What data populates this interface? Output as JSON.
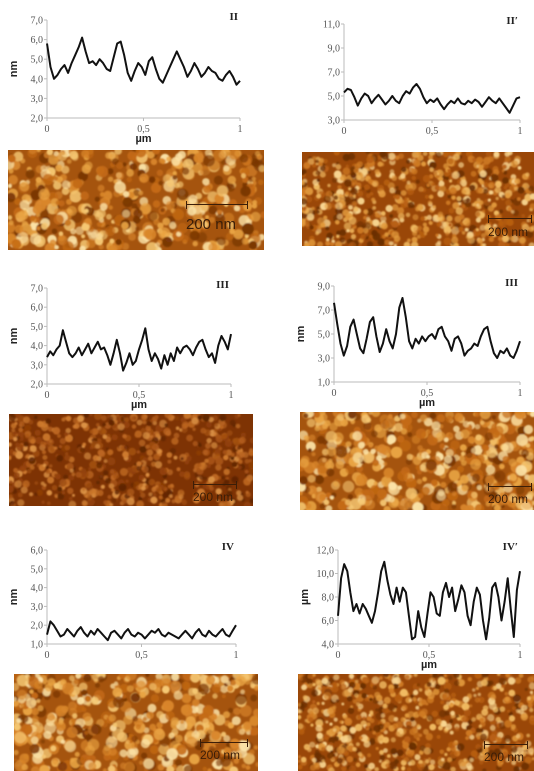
{
  "panels": [
    {
      "id": "II",
      "label": "II",
      "y_unit": "nm",
      "x_unit": "µm",
      "y_ticks": [
        "7,0",
        "6,0",
        "5,0",
        "4,0",
        "3,0",
        "2,0"
      ],
      "x_ticks": [
        "0",
        "0,5",
        "1"
      ],
      "ylim": [
        2.0,
        7.0
      ],
      "profile": [
        5.8,
        4.6,
        4.0,
        4.2,
        4.5,
        4.7,
        4.3,
        4.8,
        5.2,
        5.6,
        6.1,
        5.4,
        4.8,
        4.9,
        4.7,
        5.0,
        4.8,
        4.5,
        4.4,
        5.1,
        5.8,
        5.9,
        5.2,
        4.3,
        3.9,
        4.4,
        4.8,
        4.6,
        4.2,
        4.9,
        5.1,
        4.5,
        4.0,
        3.8,
        4.2,
        4.6,
        5.0,
        5.4,
        5.0,
        4.6,
        4.1,
        4.4,
        4.8,
        4.5,
        4.1,
        4.3,
        4.6,
        4.4,
        4.3,
        4.0,
        3.9,
        4.2,
        4.4,
        4.1,
        3.7,
        3.9
      ],
      "afm_scale": "200 nm",
      "afm_tone": "light"
    },
    {
      "id": "IIp",
      "label": "II′",
      "y_unit": "",
      "x_unit": "",
      "y_ticks": [
        "11,0",
        "9,0",
        "7,0",
        "5,0",
        "3,0"
      ],
      "x_ticks": [
        "0",
        "0,5",
        "1"
      ],
      "ylim": [
        3.0,
        11.0
      ],
      "profile": [
        5.3,
        5.6,
        5.5,
        4.9,
        4.2,
        4.8,
        5.2,
        5.0,
        4.4,
        4.8,
        5.1,
        4.7,
        4.3,
        4.6,
        5.0,
        4.6,
        4.4,
        5.0,
        5.4,
        5.2,
        5.7,
        6.0,
        5.6,
        4.9,
        4.4,
        4.7,
        4.5,
        4.8,
        4.3,
        3.9,
        4.3,
        4.6,
        4.4,
        4.8,
        4.4,
        4.3,
        4.6,
        4.4,
        4.7,
        4.5,
        4.1,
        4.5,
        4.9,
        4.6,
        4.4,
        4.8,
        4.4,
        4.0,
        3.6,
        4.2,
        4.8,
        4.9
      ],
      "afm_scale": "200 nm",
      "afm_tone": "mid"
    },
    {
      "id": "III",
      "label": "III",
      "y_unit": "nm",
      "x_unit": "µm",
      "y_ticks": [
        "7,0",
        "6,0",
        "5,0",
        "4,0",
        "3,0",
        "2,0"
      ],
      "x_ticks": [
        "0",
        "0,5",
        "1"
      ],
      "ylim": [
        2.0,
        7.0
      ],
      "profile": [
        3.4,
        3.7,
        3.5,
        3.8,
        4.0,
        4.8,
        4.2,
        3.6,
        3.4,
        3.6,
        3.9,
        3.5,
        3.8,
        4.1,
        3.6,
        3.9,
        4.2,
        3.8,
        3.9,
        3.5,
        3.0,
        3.6,
        4.3,
        3.6,
        2.7,
        3.1,
        3.6,
        3.0,
        3.2,
        3.8,
        4.3,
        4.9,
        3.8,
        3.2,
        3.6,
        3.3,
        2.8,
        3.5,
        3.0,
        3.6,
        3.2,
        3.9,
        3.6,
        3.9,
        4.0,
        3.8,
        3.5,
        3.9,
        4.2,
        4.3,
        3.8,
        3.4,
        3.6,
        3.1,
        4.0,
        4.5,
        4.2,
        3.8,
        4.6
      ],
      "afm_scale": "200 nm",
      "afm_tone": "dark"
    },
    {
      "id": "IIIp",
      "label": "III",
      "y_unit": "nm",
      "x_unit": "µm",
      "y_ticks": [
        "9,0",
        "7,0",
        "5,0",
        "3,0",
        "1,0"
      ],
      "x_ticks": [
        "0",
        "0,5",
        "1"
      ],
      "ylim": [
        1.0,
        9.0
      ],
      "profile": [
        7.6,
        5.8,
        4.2,
        3.2,
        4.0,
        5.6,
        6.2,
        5.0,
        3.8,
        3.4,
        4.6,
        6.0,
        6.4,
        4.8,
        3.5,
        4.2,
        5.4,
        4.4,
        3.8,
        5.0,
        7.2,
        8.0,
        6.4,
        4.4,
        3.8,
        4.6,
        4.2,
        4.8,
        4.4,
        4.8,
        5.0,
        4.6,
        5.4,
        5.6,
        4.8,
        4.4,
        3.6,
        4.6,
        4.8,
        4.2,
        3.2,
        3.6,
        3.8,
        4.2,
        4.0,
        4.8,
        5.4,
        5.6,
        4.4,
        3.4,
        3.0,
        3.6,
        3.4,
        3.8,
        3.2,
        3.0,
        3.6,
        4.4
      ],
      "afm_scale": "200 nm",
      "afm_tone": "light"
    },
    {
      "id": "IV",
      "label": "IV",
      "y_unit": "nm",
      "x_unit": "",
      "y_ticks": [
        "6,0",
        "5,0",
        "4,0",
        "3,0",
        "2,0",
        "1,0"
      ],
      "x_ticks": [
        "0",
        "0,5",
        "1"
      ],
      "ylim": [
        1.0,
        6.0
      ],
      "profile": [
        1.5,
        2.2,
        2.0,
        1.7,
        1.4,
        1.5,
        1.8,
        1.6,
        1.4,
        1.7,
        1.9,
        1.6,
        1.4,
        1.7,
        1.5,
        1.8,
        1.6,
        1.4,
        1.2,
        1.6,
        1.7,
        1.5,
        1.3,
        1.6,
        1.8,
        1.5,
        1.4,
        1.6,
        1.5,
        1.3,
        1.5,
        1.7,
        1.6,
        1.8,
        1.5,
        1.4,
        1.6,
        1.5,
        1.4,
        1.3,
        1.5,
        1.7,
        1.5,
        1.3,
        1.6,
        1.8,
        1.5,
        1.4,
        1.7,
        1.5,
        1.4,
        1.6,
        1.8,
        1.5,
        1.4,
        1.7,
        2.0
      ],
      "afm_scale": "200 nm",
      "afm_tone": "light"
    },
    {
      "id": "IVp",
      "label": "IV′",
      "y_unit": "µm",
      "x_unit": "µm",
      "y_ticks": [
        "12,0",
        "10,0",
        "8,0",
        "6,0",
        "4,0"
      ],
      "x_ticks": [
        "0",
        "0,5",
        "1"
      ],
      "ylim": [
        4.0,
        12.0
      ],
      "profile": [
        6.4,
        9.6,
        10.8,
        10.2,
        8.4,
        6.8,
        7.4,
        6.6,
        7.4,
        7.0,
        6.4,
        5.8,
        6.8,
        8.4,
        10.2,
        11.0,
        9.4,
        8.2,
        7.4,
        8.8,
        7.6,
        8.8,
        8.4,
        6.4,
        4.4,
        4.6,
        6.8,
        5.4,
        4.6,
        6.6,
        8.4,
        8.0,
        6.6,
        6.4,
        8.4,
        9.2,
        8.0,
        8.8,
        6.8,
        7.8,
        9.0,
        8.4,
        6.4,
        5.6,
        7.6,
        8.8,
        8.2,
        6.0,
        4.4,
        6.2,
        8.8,
        9.2,
        8.0,
        6.0,
        7.6,
        9.6,
        7.0,
        4.6,
        8.6,
        10.2
      ],
      "afm_scale": "200 nm",
      "afm_tone": "mid"
    }
  ]
}
